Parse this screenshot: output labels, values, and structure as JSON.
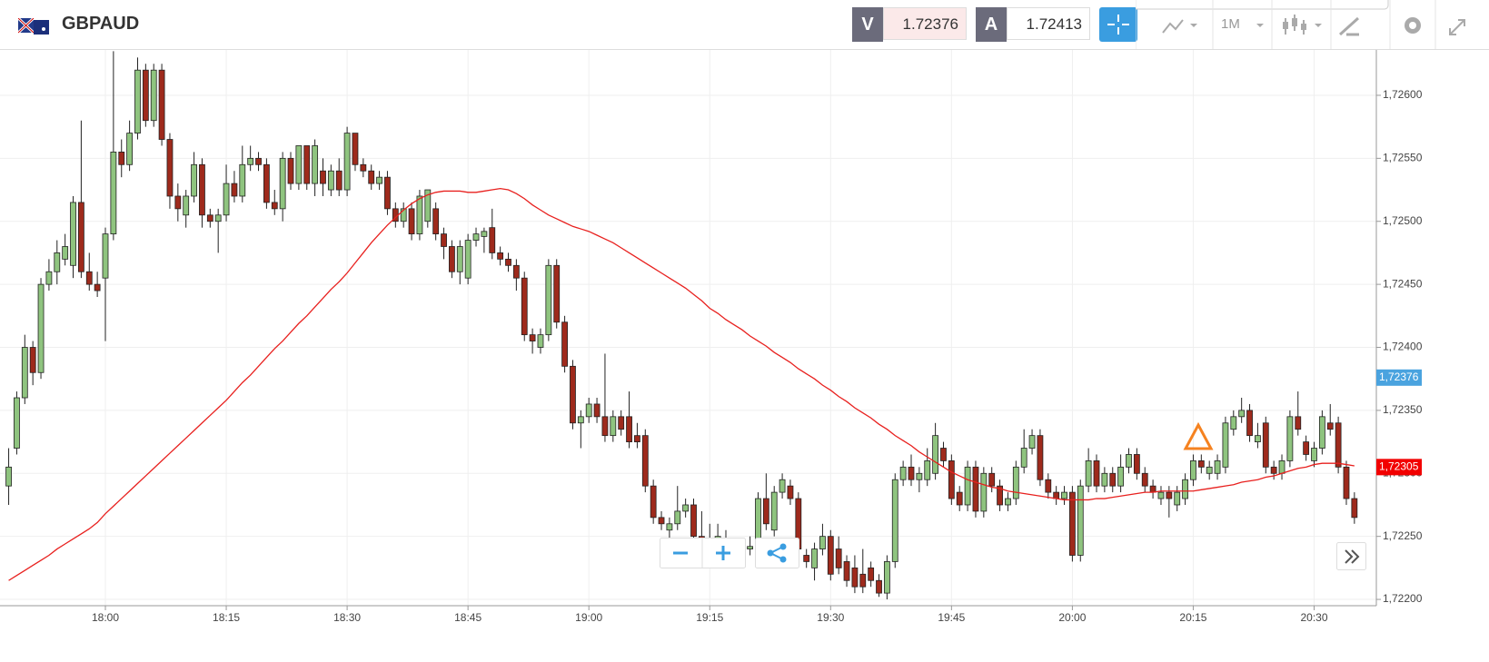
{
  "header": {
    "symbol": "GBPAUD",
    "bid_letter": "V",
    "bid": "1.72376",
    "ask_letter": "A",
    "ask": "1.72413",
    "timeframe": "1M"
  },
  "chart_data": {
    "type": "candlestick",
    "up_color": "#8fc47f",
    "down_color": "#9e2a1c",
    "categories": [
      null,
      null,
      null,
      null,
      null,
      null,
      null,
      null,
      null,
      null,
      null,
      null,
      "18:00",
      null,
      null,
      null,
      null,
      null,
      null,
      null,
      null,
      null,
      null,
      null,
      null,
      null,
      null,
      "18:15",
      null,
      null,
      null,
      null,
      null,
      null,
      null,
      null,
      null,
      null,
      null,
      null,
      null,
      null,
      "18:30",
      null,
      null,
      null,
      null,
      null,
      null,
      null,
      null,
      null,
      null,
      null,
      null,
      null,
      null,
      "18:45",
      null,
      null,
      null,
      null,
      null,
      null,
      null,
      null,
      null,
      null,
      null,
      null,
      null,
      null,
      "19:00",
      null,
      null,
      null,
      null,
      null,
      null,
      null,
      null,
      null,
      null,
      null,
      null,
      null,
      null,
      "19:15",
      null,
      null,
      null,
      null,
      null,
      null,
      null,
      null,
      null,
      null,
      null,
      null,
      null,
      null,
      "19:30",
      null,
      null,
      null,
      null,
      null,
      null,
      null,
      null,
      null,
      null,
      null,
      null,
      null,
      null,
      "19:45",
      null,
      null,
      null,
      null,
      null,
      null,
      null,
      null,
      null,
      null,
      null,
      null,
      null,
      null,
      "20:00",
      null,
      null,
      null,
      null,
      null,
      null,
      null,
      null,
      null,
      null,
      null,
      null,
      null,
      null,
      "20:15",
      null,
      null,
      null,
      null,
      null,
      null,
      null,
      null,
      null,
      null,
      null,
      null,
      null,
      null,
      "20:30",
      null,
      null,
      null,
      null,
      null
    ],
    "ohlc": [
      [
        1.7229,
        1.7232,
        1.72275,
        1.72305
      ],
      [
        1.7232,
        1.72365,
        1.72315,
        1.7236
      ],
      [
        1.7236,
        1.7241,
        1.72355,
        1.724
      ],
      [
        1.724,
        1.72405,
        1.7237,
        1.7238
      ],
      [
        1.7238,
        1.72455,
        1.72375,
        1.7245
      ],
      [
        1.7245,
        1.7247,
        1.72445,
        1.7246
      ],
      [
        1.7246,
        1.72485,
        1.7245,
        1.72475
      ],
      [
        1.7247,
        1.7249,
        1.72465,
        1.7248
      ],
      [
        1.72465,
        1.7252,
        1.72455,
        1.72515
      ],
      [
        1.72515,
        1.7258,
        1.72455,
        1.7246
      ],
      [
        1.7246,
        1.72475,
        1.72445,
        1.7245
      ],
      [
        1.7245,
        1.7246,
        1.7244,
        1.72445
      ],
      [
        1.72455,
        1.72495,
        1.72405,
        1.7249
      ],
      [
        1.7249,
        1.72635,
        1.72485,
        1.72555
      ],
      [
        1.72555,
        1.72565,
        1.72535,
        1.72545
      ],
      [
        1.72545,
        1.7258,
        1.7254,
        1.7257
      ],
      [
        1.7257,
        1.7263,
        1.72565,
        1.7262
      ],
      [
        1.7262,
        1.72625,
        1.72575,
        1.7258
      ],
      [
        1.7258,
        1.72625,
        1.72575,
        1.7262
      ],
      [
        1.7262,
        1.72625,
        1.7256,
        1.72565
      ],
      [
        1.72565,
        1.7257,
        1.7251,
        1.7252
      ],
      [
        1.7252,
        1.7253,
        1.725,
        1.7251
      ],
      [
        1.72505,
        1.72525,
        1.72495,
        1.7252
      ],
      [
        1.7252,
        1.72555,
        1.72515,
        1.72545
      ],
      [
        1.72545,
        1.7255,
        1.72495,
        1.72505
      ],
      [
        1.72505,
        1.7251,
        1.72495,
        1.725
      ],
      [
        1.725,
        1.7251,
        1.72475,
        1.72505
      ],
      [
        1.72505,
        1.72545,
        1.725,
        1.7253
      ],
      [
        1.7253,
        1.7254,
        1.72515,
        1.7252
      ],
      [
        1.7252,
        1.7256,
        1.72515,
        1.72545
      ],
      [
        1.72545,
        1.7256,
        1.7254,
        1.7255
      ],
      [
        1.7255,
        1.72555,
        1.7254,
        1.72545
      ],
      [
        1.72545,
        1.7255,
        1.7251,
        1.72515
      ],
      [
        1.72515,
        1.72525,
        1.72505,
        1.7251
      ],
      [
        1.7251,
        1.72555,
        1.725,
        1.7255
      ],
      [
        1.7255,
        1.72555,
        1.72525,
        1.7253
      ],
      [
        1.7253,
        1.7256,
        1.72525,
        1.7256
      ],
      [
        1.7256,
        1.7256,
        1.72525,
        1.7253
      ],
      [
        1.7253,
        1.72565,
        1.7252,
        1.7256
      ],
      [
        1.7254,
        1.7255,
        1.7252,
        1.7253
      ],
      [
        1.72525,
        1.72545,
        1.7252,
        1.7254
      ],
      [
        1.7254,
        1.7255,
        1.7252,
        1.72525
      ],
      [
        1.72525,
        1.72575,
        1.7252,
        1.7257
      ],
      [
        1.7257,
        1.7257,
        1.7254,
        1.72545
      ],
      [
        1.72545,
        1.7255,
        1.72535,
        1.7254
      ],
      [
        1.7254,
        1.72545,
        1.72525,
        1.7253
      ],
      [
        1.7253,
        1.7254,
        1.72525,
        1.72535
      ],
      [
        1.72535,
        1.7254,
        1.72505,
        1.7251
      ],
      [
        1.7251,
        1.72515,
        1.72495,
        1.725
      ],
      [
        1.725,
        1.72515,
        1.72495,
        1.7251
      ],
      [
        1.7251,
        1.72515,
        1.72485,
        1.7249
      ],
      [
        1.7249,
        1.72525,
        1.72485,
        1.7252
      ],
      [
        1.725,
        1.72525,
        1.72495,
        1.72525
      ],
      [
        1.7251,
        1.72515,
        1.72485,
        1.7249
      ],
      [
        1.7249,
        1.72495,
        1.7247,
        1.7248
      ],
      [
        1.7248,
        1.72485,
        1.72455,
        1.7246
      ],
      [
        1.7246,
        1.72485,
        1.7245,
        1.7248
      ],
      [
        1.72455,
        1.7249,
        1.7245,
        1.72485
      ],
      [
        1.72485,
        1.72495,
        1.7248,
        1.7249
      ],
      [
        1.72488,
        1.72495,
        1.72475,
        1.72492
      ],
      [
        1.72495,
        1.7251,
        1.7247,
        1.72475
      ],
      [
        1.72475,
        1.7248,
        1.72465,
        1.7247
      ],
      [
        1.7247,
        1.72475,
        1.7246,
        1.72465
      ],
      [
        1.72465,
        1.7247,
        1.72445,
        1.72455
      ],
      [
        1.72455,
        1.7246,
        1.72405,
        1.7241
      ],
      [
        1.7241,
        1.72415,
        1.72395,
        1.72405
      ],
      [
        1.724,
        1.72415,
        1.72395,
        1.7241
      ],
      [
        1.7241,
        1.7247,
        1.72405,
        1.72465
      ],
      [
        1.72465,
        1.7247,
        1.72415,
        1.7242
      ],
      [
        1.7242,
        1.72425,
        1.7238,
        1.72385
      ],
      [
        1.72385,
        1.7239,
        1.72335,
        1.7234
      ],
      [
        1.7234,
        1.7235,
        1.7232,
        1.72345
      ],
      [
        1.72345,
        1.7236,
        1.7234,
        1.72355
      ],
      [
        1.72355,
        1.7236,
        1.7234,
        1.72345
      ],
      [
        1.72345,
        1.72395,
        1.72325,
        1.7233
      ],
      [
        1.7233,
        1.7235,
        1.72325,
        1.72345
      ],
      [
        1.72345,
        1.7235,
        1.7233,
        1.72335
      ],
      [
        1.72345,
        1.72365,
        1.7232,
        1.72325
      ],
      [
        1.7233,
        1.7234,
        1.7232,
        1.72325
      ],
      [
        1.7233,
        1.72335,
        1.72285,
        1.7229
      ],
      [
        1.7229,
        1.72295,
        1.7226,
        1.72265
      ],
      [
        1.72265,
        1.7227,
        1.72255,
        1.7226
      ],
      [
        1.72255,
        1.72265,
        1.72225,
        1.7226
      ],
      [
        1.7226,
        1.7229,
        1.72255,
        1.7227
      ],
      [
        1.7227,
        1.7228,
        1.72265,
        1.72275
      ],
      [
        1.72275,
        1.7228,
        1.72245,
        1.7225
      ],
      [
        1.7225,
        1.7227,
        1.7224,
        1.7224
      ],
      [
        1.72245,
        1.7226,
        1.7223,
        1.72235
      ],
      [
        1.7223,
        1.7226,
        1.72225,
        1.7225
      ],
      [
        1.72245,
        1.72255,
        1.72225,
        1.7223
      ],
      [
        1.7223,
        1.72245,
        1.72225,
        1.7224
      ],
      [
        1.72235,
        1.72245,
        1.7223,
        1.7224
      ],
      [
        1.7224,
        1.7225,
        1.72235,
        1.72242
      ],
      [
        1.7224,
        1.72285,
        1.72235,
        1.7228
      ],
      [
        1.7228,
        1.723,
        1.72255,
        1.7226
      ],
      [
        1.72255,
        1.7229,
        1.7225,
        1.72285
      ],
      [
        1.72285,
        1.723,
        1.7228,
        1.72295
      ],
      [
        1.7229,
        1.72295,
        1.72275,
        1.7228
      ],
      [
        1.7228,
        1.72285,
        1.72235,
        1.7224
      ],
      [
        1.72235,
        1.7224,
        1.72225,
        1.7223
      ],
      [
        1.72225,
        1.72245,
        1.72215,
        1.7224
      ],
      [
        1.7224,
        1.7226,
        1.72235,
        1.7225
      ],
      [
        1.7225,
        1.72255,
        1.72215,
        1.7222
      ],
      [
        1.7224,
        1.7225,
        1.7222,
        1.72225
      ],
      [
        1.7223,
        1.72235,
        1.7221,
        1.72215
      ],
      [
        1.72225,
        1.72235,
        1.72205,
        1.7221
      ],
      [
        1.7222,
        1.7224,
        1.72205,
        1.7221
      ],
      [
        1.72225,
        1.7223,
        1.7221,
        1.72215
      ],
      [
        1.72215,
        1.7222,
        1.72202,
        1.72205
      ],
      [
        1.72205,
        1.72235,
        1.722,
        1.7223
      ],
      [
        1.7223,
        1.723,
        1.72225,
        1.72295
      ],
      [
        1.72295,
        1.7231,
        1.7229,
        1.72305
      ],
      [
        1.72305,
        1.72315,
        1.7229,
        1.72295
      ],
      [
        1.72295,
        1.72305,
        1.72285,
        1.723
      ],
      [
        1.72295,
        1.7232,
        1.7229,
        1.7231
      ],
      [
        1.723,
        1.7234,
        1.72295,
        1.7233
      ],
      [
        1.7232,
        1.72325,
        1.72305,
        1.7231
      ],
      [
        1.7231,
        1.72315,
        1.72275,
        1.7228
      ],
      [
        1.72285,
        1.7229,
        1.7227,
        1.72275
      ],
      [
        1.72275,
        1.7231,
        1.7227,
        1.72305
      ],
      [
        1.72305,
        1.7231,
        1.72265,
        1.7227
      ],
      [
        1.7227,
        1.72305,
        1.72265,
        1.723
      ],
      [
        1.723,
        1.72305,
        1.72285,
        1.7229
      ],
      [
        1.7229,
        1.72295,
        1.7227,
        1.72275
      ],
      [
        1.72275,
        1.72285,
        1.7227,
        1.7228
      ],
      [
        1.7228,
        1.7231,
        1.72275,
        1.72305
      ],
      [
        1.72305,
        1.72335,
        1.723,
        1.7232
      ],
      [
        1.7232,
        1.72335,
        1.72315,
        1.7233
      ],
      [
        1.7233,
        1.72335,
        1.7229,
        1.72295
      ],
      [
        1.72295,
        1.723,
        1.7228,
        1.72285
      ],
      [
        1.72285,
        1.7229,
        1.72275,
        1.7228
      ],
      [
        1.7228,
        1.7229,
        1.72275,
        1.72285
      ],
      [
        1.72285,
        1.7229,
        1.7223,
        1.72235
      ],
      [
        1.72235,
        1.72295,
        1.7223,
        1.7229
      ],
      [
        1.7229,
        1.7232,
        1.72285,
        1.7231
      ],
      [
        1.7231,
        1.72315,
        1.72285,
        1.7229
      ],
      [
        1.7229,
        1.72305,
        1.72285,
        1.723
      ],
      [
        1.723,
        1.72305,
        1.72285,
        1.7229
      ],
      [
        1.7229,
        1.72315,
        1.72285,
        1.72305
      ],
      [
        1.72305,
        1.7232,
        1.723,
        1.72315
      ],
      [
        1.72315,
        1.7232,
        1.72295,
        1.723
      ],
      [
        1.723,
        1.72305,
        1.72285,
        1.7229
      ],
      [
        1.7229,
        1.72295,
        1.7228,
        1.72285
      ],
      [
        1.7228,
        1.7229,
        1.72275,
        1.72285
      ],
      [
        1.72285,
        1.7229,
        1.72265,
        1.7228
      ],
      [
        1.72275,
        1.7229,
        1.7227,
        1.72285
      ],
      [
        1.7228,
        1.723,
        1.72275,
        1.72295
      ],
      [
        1.72295,
        1.72315,
        1.7229,
        1.7231
      ],
      [
        1.7231,
        1.72315,
        1.723,
        1.72305
      ],
      [
        1.723,
        1.7231,
        1.72295,
        1.72305
      ],
      [
        1.723,
        1.72315,
        1.72295,
        1.7231
      ],
      [
        1.72305,
        1.72345,
        1.723,
        1.7234
      ],
      [
        1.72335,
        1.7235,
        1.7233,
        1.72345
      ],
      [
        1.72345,
        1.7236,
        1.7234,
        1.7235
      ],
      [
        1.7235,
        1.72355,
        1.72325,
        1.7233
      ],
      [
        1.72325,
        1.7234,
        1.7232,
        1.7233
      ],
      [
        1.7234,
        1.72345,
        1.723,
        1.72305
      ],
      [
        1.72305,
        1.7231,
        1.72295,
        1.723
      ],
      [
        1.723,
        1.72315,
        1.72295,
        1.7231
      ],
      [
        1.7231,
        1.7235,
        1.72305,
        1.72345
      ],
      [
        1.72345,
        1.72365,
        1.7233,
        1.72335
      ],
      [
        1.72325,
        1.7233,
        1.7231,
        1.72315
      ],
      [
        1.7231,
        1.72325,
        1.72305,
        1.7232
      ],
      [
        1.7232,
        1.7235,
        1.72315,
        1.72345
      ],
      [
        1.7234,
        1.72355,
        1.7233,
        1.72335
      ],
      [
        1.7234,
        1.72345,
        1.723,
        1.72305
      ],
      [
        1.72305,
        1.7231,
        1.72275,
        1.7228
      ],
      [
        1.7228,
        1.72285,
        1.7226,
        1.72265
      ]
    ],
    "line": {
      "color": "#e8201e",
      "values": [
        1.72215,
        1.72219,
        1.72223,
        1.72227,
        1.72231,
        1.72235,
        1.7224,
        1.72244,
        1.72248,
        1.72252,
        1.72256,
        1.72261,
        1.72268,
        1.72274,
        1.7228,
        1.72286,
        1.72292,
        1.72298,
        1.72304,
        1.7231,
        1.72316,
        1.72322,
        1.72328,
        1.72334,
        1.7234,
        1.72346,
        1.72352,
        1.72358,
        1.72365,
        1.72372,
        1.72378,
        1.72385,
        1.72392,
        1.72399,
        1.72405,
        1.72412,
        1.72419,
        1.72425,
        1.72432,
        1.72439,
        1.72446,
        1.72452,
        1.72459,
        1.72467,
        1.72475,
        1.72483,
        1.7249,
        1.72497,
        1.72503,
        1.72509,
        1.72514,
        1.72518,
        1.72521,
        1.72523,
        1.72524,
        1.72524,
        1.72524,
        1.72523,
        1.72523,
        1.72524,
        1.72525,
        1.72526,
        1.72525,
        1.72522,
        1.72518,
        1.72513,
        1.72509,
        1.72505,
        1.72502,
        1.72499,
        1.72496,
        1.72494,
        1.72492,
        1.72489,
        1.72486,
        1.72483,
        1.72479,
        1.72475,
        1.72471,
        1.72467,
        1.72463,
        1.72459,
        1.72455,
        1.72451,
        1.72447,
        1.72442,
        1.72437,
        1.72431,
        1.72427,
        1.72422,
        1.72418,
        1.72414,
        1.72409,
        1.72405,
        1.72401,
        1.72396,
        1.72392,
        1.72388,
        1.72383,
        1.72379,
        1.72375,
        1.7237,
        1.72366,
        1.72361,
        1.72357,
        1.72352,
        1.72348,
        1.72344,
        1.72339,
        1.72335,
        1.7233,
        1.72326,
        1.72322,
        1.72317,
        1.72313,
        1.72309,
        1.72305,
        1.72301,
        1.72298,
        1.72295,
        1.72293,
        1.72291,
        1.72289,
        1.72288,
        1.72286,
        1.72285,
        1.72284,
        1.72283,
        1.72282,
        1.72281,
        1.7228,
        1.72279,
        1.72279,
        1.72279,
        1.72279,
        1.7228,
        1.7228,
        1.72281,
        1.72282,
        1.72283,
        1.72284,
        1.72285,
        1.72285,
        1.72286,
        1.72286,
        1.72286,
        1.72286,
        1.72286,
        1.72287,
        1.72288,
        1.72289,
        1.7229,
        1.72291,
        1.72293,
        1.72294,
        1.72295,
        1.72297,
        1.72298,
        1.723,
        1.72302,
        1.72304,
        1.72305,
        1.72307,
        1.72308,
        1.72308,
        1.72308,
        1.72307,
        1.72306
      ]
    },
    "ylim": [
      1.72195,
      1.72636
    ],
    "yticks": [
      {
        "value": 1.722,
        "label": "1,72200"
      },
      {
        "value": 1.7225,
        "label": "1,72250"
      },
      {
        "value": 1.723,
        "label": "1,72300"
      },
      {
        "value": 1.7235,
        "label": "1,72350"
      },
      {
        "value": 1.724,
        "label": "1,72400"
      },
      {
        "value": 1.7245,
        "label": "1,72450"
      },
      {
        "value": 1.725,
        "label": "1,72500"
      },
      {
        "value": 1.7255,
        "label": "1,72550"
      },
      {
        "value": 1.726,
        "label": "1,72600"
      }
    ],
    "grid": true,
    "price_tags": [
      {
        "value": 1.72376,
        "label": "1,72376",
        "color": "#4aa3df"
      },
      {
        "value": 1.72305,
        "label": "1,72305",
        "color": "#f20000"
      }
    ]
  }
}
